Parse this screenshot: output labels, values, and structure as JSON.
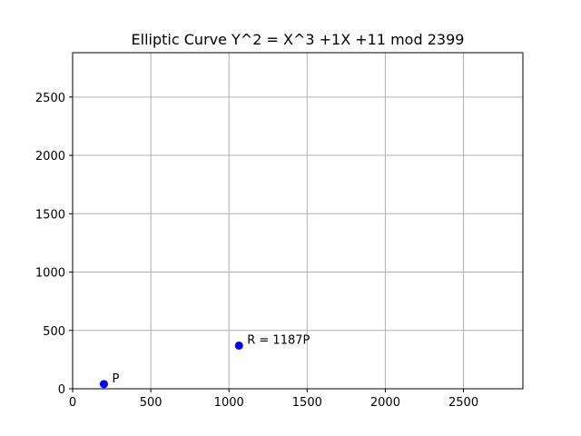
{
  "chart_data": {
    "type": "scatter",
    "title": "Elliptic Curve  Y^2 = X^3 +1X +11 mod 2399",
    "xlabel": "",
    "ylabel": "",
    "xlim": [
      0,
      2880
    ],
    "ylim": [
      0,
      2880
    ],
    "x_ticks": [
      0,
      500,
      1000,
      1500,
      2000,
      2500
    ],
    "y_ticks": [
      0,
      500,
      1000,
      1500,
      2000,
      2500
    ],
    "grid": true,
    "marker_color": "#0000ff",
    "points": [
      {
        "x": 200,
        "y": 40,
        "label": "P"
      },
      {
        "x": 1064,
        "y": 370,
        "label": "R = 1187P"
      }
    ]
  }
}
